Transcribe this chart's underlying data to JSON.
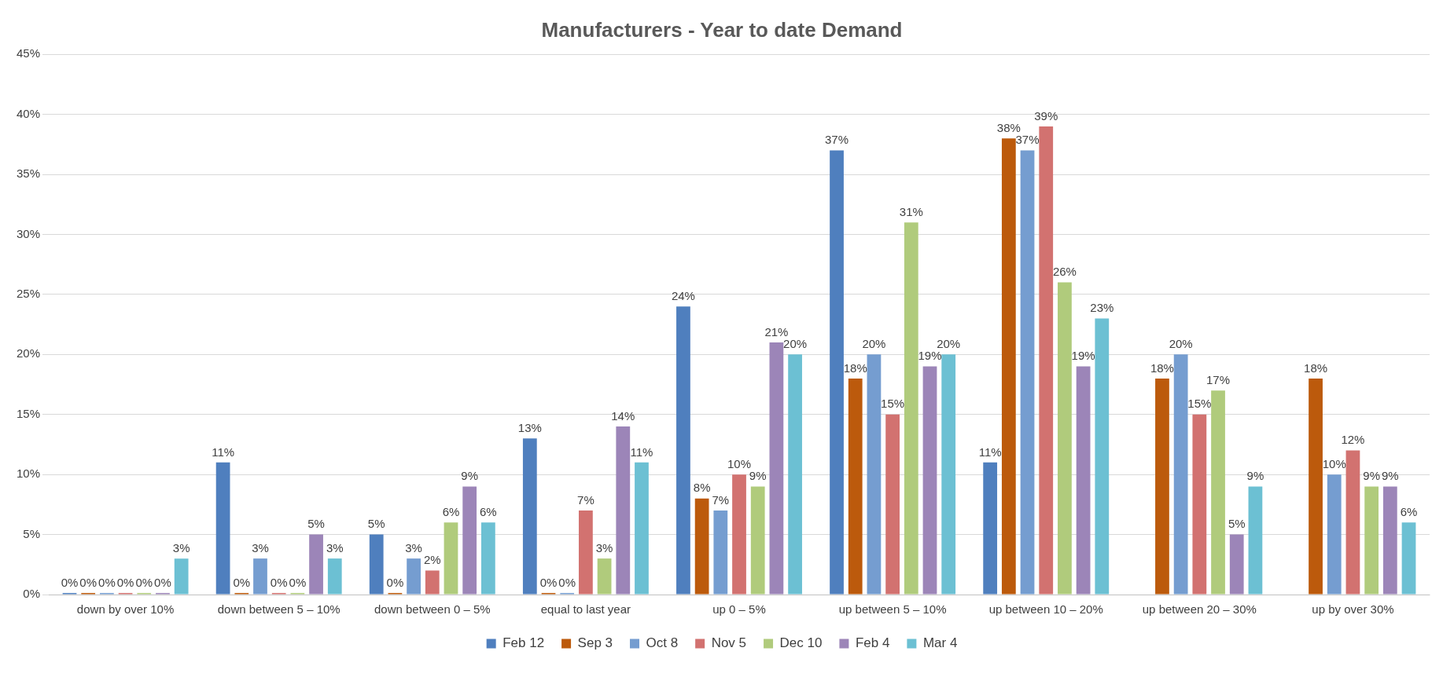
{
  "chart_data": {
    "type": "bar",
    "title": "Manufacturers - Year to date Demand",
    "categories": [
      "down by over 10%",
      "down between 5 – 10%",
      "down between 0 – 5%",
      "equal to last year",
      "up 0 – 5%",
      "up between 5 – 10%",
      "up between 10 – 20%",
      "up between 20 – 30%",
      "up by over 30%"
    ],
    "series": [
      {
        "name": "Feb 12",
        "color": "#4f7fbe",
        "values": [
          0,
          11,
          5,
          13,
          24,
          37,
          11,
          null,
          null
        ],
        "value_labels": [
          "0%",
          "11%",
          "5%",
          "13%",
          "24%",
          "37%",
          "11%",
          null,
          null
        ]
      },
      {
        "name": "Sep 3",
        "color": "#bc5a0c",
        "values": [
          0,
          0,
          0,
          0,
          8,
          18,
          38,
          18,
          18
        ],
        "value_labels": [
          "0%",
          "0%",
          "0%",
          "0%",
          "8%",
          "18%",
          "38%",
          "18%",
          "18%"
        ]
      },
      {
        "name": "Oct 8",
        "color": "#759dd0",
        "values": [
          0,
          3,
          3,
          0,
          7,
          20,
          37,
          20,
          10
        ],
        "value_labels": [
          "0%",
          "3%",
          "3%",
          "0%",
          "7%",
          "20%",
          "37%",
          "20%",
          "10%"
        ]
      },
      {
        "name": "Nov 5",
        "color": "#d27270",
        "values": [
          0,
          0,
          2,
          7,
          10,
          15,
          39,
          15,
          12
        ],
        "value_labels": [
          "0%",
          "0%",
          "2%",
          "7%",
          "10%",
          "15%",
          "39%",
          "15%",
          "12%"
        ]
      },
      {
        "name": "Dec 10",
        "color": "#b0cb7c",
        "values": [
          0,
          0,
          6,
          3,
          9,
          31,
          26,
          17,
          9
        ],
        "value_labels": [
          "0%",
          "0%",
          "6%",
          "3%",
          "9%",
          "31%",
          "26%",
          "17%",
          "9%"
        ]
      },
      {
        "name": "Feb 4",
        "color": "#9c85b8",
        "values": [
          0,
          5,
          9,
          14,
          21,
          19,
          19,
          5,
          9
        ],
        "value_labels": [
          "0%",
          "5%",
          "9%",
          "14%",
          "21%",
          "19%",
          "19%",
          "5%",
          "9%"
        ]
      },
      {
        "name": "Mar 4",
        "color": "#6cc0d3",
        "values": [
          3,
          3,
          6,
          11,
          20,
          20,
          23,
          9,
          6
        ],
        "value_labels": [
          "3%",
          "3%",
          "6%",
          "11%",
          "20%",
          "20%",
          "23%",
          "9%",
          "6%"
        ]
      }
    ],
    "ylim": [
      0,
      45
    ],
    "yticks": [
      {
        "value": 0,
        "label": "0%"
      },
      {
        "value": 5,
        "label": "5%"
      },
      {
        "value": 10,
        "label": "10%"
      },
      {
        "value": 15,
        "label": "15%"
      },
      {
        "value": 20,
        "label": "20%"
      },
      {
        "value": 25,
        "label": "25%"
      },
      {
        "value": 30,
        "label": "30%"
      },
      {
        "value": 35,
        "label": "35%"
      },
      {
        "value": 40,
        "label": "40%"
      },
      {
        "value": 45,
        "label": "45%"
      }
    ],
    "grid": "y",
    "legend": "bottom"
  }
}
